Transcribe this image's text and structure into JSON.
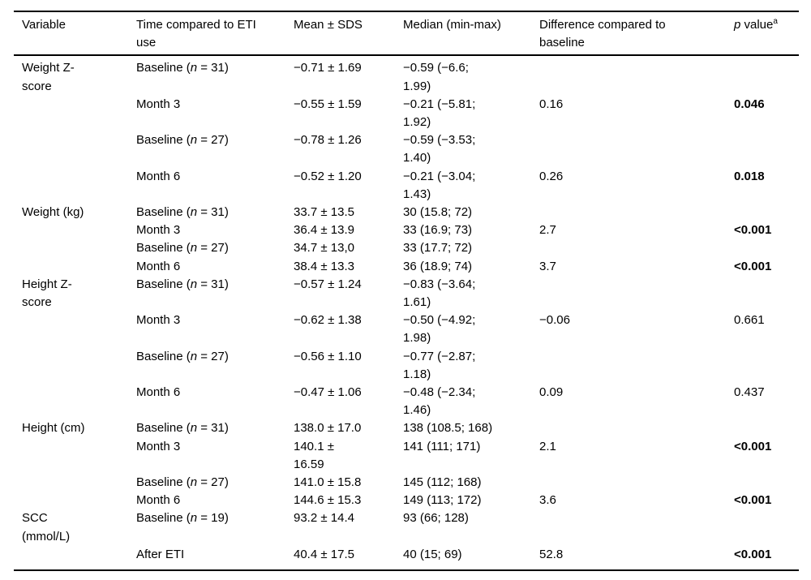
{
  "colors": {
    "background": "#ffffff",
    "text": "#000000",
    "rule": "#000000"
  },
  "table": {
    "headers": [
      {
        "key": "variable",
        "lines": [
          "Variable"
        ]
      },
      {
        "key": "time",
        "lines": [
          "Time compared to ETI",
          "use"
        ]
      },
      {
        "key": "mean",
        "lines": [
          "Mean ± SDS"
        ]
      },
      {
        "key": "median",
        "lines": [
          "Median (min-max)"
        ]
      },
      {
        "key": "difference",
        "lines": [
          "Difference compared to",
          "baseline"
        ]
      },
      {
        "key": "pvalue",
        "lines": [
          [
            {
              "t": "p",
              "i": true
            },
            {
              "t": " value"
            },
            {
              "t": "a",
              "sup": true
            }
          ]
        ]
      }
    ],
    "sections": [
      {
        "variable": [
          "Weight Z-",
          "score"
        ],
        "rows": [
          {
            "time": [
              [
                "Baseline (",
                {
                  "t": "n",
                  "i": true
                },
                " = 31)"
              ]
            ],
            "mean": [
              "−0.71 ± 1.69"
            ],
            "median": [
              "−0.59 (−6.6;",
              "1.99)"
            ],
            "difference": [],
            "pvalue": []
          },
          {
            "time": [
              "Month 3"
            ],
            "mean": [
              "−0.55 ± 1.59"
            ],
            "median": [
              "−0.21 (−5.81;",
              "1.92)"
            ],
            "difference": [
              "0.16"
            ],
            "pvalue": [
              [
                {
                  "t": "0.046",
                  "b": true
                }
              ]
            ]
          },
          {
            "time": [
              [
                "Baseline (",
                {
                  "t": "n",
                  "i": true
                },
                " = 27)"
              ]
            ],
            "mean": [
              "−0.78 ± 1.26"
            ],
            "median": [
              "−0.59 (−3.53;",
              "1.40)"
            ],
            "difference": [],
            "pvalue": []
          },
          {
            "time": [
              "Month 6"
            ],
            "mean": [
              "−0.52 ± 1.20"
            ],
            "median": [
              "−0.21 (−3.04;",
              "1.43)"
            ],
            "difference": [
              "0.26"
            ],
            "pvalue": [
              [
                {
                  "t": "0.018",
                  "b": true
                }
              ]
            ]
          }
        ]
      },
      {
        "variable": [
          "Weight (kg)"
        ],
        "rows": [
          {
            "time": [
              [
                "Baseline (",
                {
                  "t": "n",
                  "i": true
                },
                " = 31)"
              ]
            ],
            "mean": [
              "33.7 ± 13.5"
            ],
            "median": [
              "30 (15.8; 72)"
            ],
            "difference": [],
            "pvalue": []
          },
          {
            "time": [
              "Month 3"
            ],
            "mean": [
              "36.4 ± 13.9"
            ],
            "median": [
              "33 (16.9; 73)"
            ],
            "difference": [
              "2.7"
            ],
            "pvalue": [
              [
                {
                  "t": "<0.001",
                  "b": true
                }
              ]
            ]
          },
          {
            "time": [
              [
                "Baseline (",
                {
                  "t": "n",
                  "i": true
                },
                " = 27)"
              ]
            ],
            "mean": [
              "34.7 ± 13,0"
            ],
            "median": [
              "33 (17.7; 72)"
            ],
            "difference": [],
            "pvalue": []
          },
          {
            "time": [
              "Month 6"
            ],
            "mean": [
              "38.4 ± 13.3"
            ],
            "median": [
              "36 (18.9; 74)"
            ],
            "difference": [
              "3.7"
            ],
            "pvalue": [
              [
                {
                  "t": "<0.001",
                  "b": true
                }
              ]
            ]
          }
        ]
      },
      {
        "variable": [
          "Height Z-",
          "score"
        ],
        "rows": [
          {
            "time": [
              [
                "Baseline (",
                {
                  "t": "n",
                  "i": true
                },
                " = 31)"
              ]
            ],
            "mean": [
              "−0.57 ± 1.24"
            ],
            "median": [
              "−0.83 (−3.64;",
              "1.61)"
            ],
            "difference": [],
            "pvalue": []
          },
          {
            "time": [
              "Month 3"
            ],
            "mean": [
              "−0.62 ± 1.38"
            ],
            "median": [
              "−0.50 (−4.92;",
              "1.98)"
            ],
            "difference": [
              "−0.06"
            ],
            "pvalue": [
              [
                "0.661"
              ]
            ]
          },
          {
            "time": [
              [
                "Baseline (",
                {
                  "t": "n",
                  "i": true
                },
                " = 27)"
              ]
            ],
            "mean": [
              "−0.56 ± 1.10"
            ],
            "median": [
              "−0.77 (−2.87;",
              "1.18)"
            ],
            "difference": [],
            "pvalue": []
          },
          {
            "time": [
              "Month 6"
            ],
            "mean": [
              "−0.47 ± 1.06"
            ],
            "median": [
              "−0.48 (−2.34;",
              "1.46)"
            ],
            "difference": [
              "0.09"
            ],
            "pvalue": [
              [
                "0.437"
              ]
            ]
          }
        ]
      },
      {
        "variable": [
          "Height (cm)"
        ],
        "rows": [
          {
            "time": [
              [
                "Baseline (",
                {
                  "t": "n",
                  "i": true
                },
                " = 31)"
              ]
            ],
            "mean": [
              "138.0 ± 17.0"
            ],
            "median": [
              "138 (108.5; 168)"
            ],
            "difference": [],
            "pvalue": []
          },
          {
            "time": [
              "Month 3"
            ],
            "mean": [
              "140.1 ±",
              "16.59"
            ],
            "median": [
              "141 (111; 171)"
            ],
            "difference": [
              "2.1"
            ],
            "pvalue": [
              [
                {
                  "t": "<0.001",
                  "b": true
                }
              ]
            ]
          },
          {
            "time": [
              [
                "Baseline (",
                {
                  "t": "n",
                  "i": true
                },
                " = 27)"
              ]
            ],
            "mean": [
              "141.0 ± 15.8"
            ],
            "median": [
              "145 (112; 168)"
            ],
            "difference": [],
            "pvalue": []
          },
          {
            "time": [
              "Month 6"
            ],
            "mean": [
              "144.6 ± 15.3"
            ],
            "median": [
              "149 (113; 172)"
            ],
            "difference": [
              "3.6"
            ],
            "pvalue": [
              [
                {
                  "t": "<0.001",
                  "b": true
                }
              ]
            ]
          }
        ]
      },
      {
        "variable": [
          "SCC",
          "(mmol/L)"
        ],
        "rows": [
          {
            "time": [
              [
                "Baseline (",
                {
                  "t": "n",
                  "i": true
                },
                " = 19)"
              ]
            ],
            "mean": [
              "93.2 ± 14.4"
            ],
            "median": [
              "93 (66; 128)"
            ],
            "difference": [],
            "pvalue": []
          },
          {
            "time": [
              "After ETI"
            ],
            "mean": [
              "40.4 ± 17.5"
            ],
            "median": [
              "40 (15; 69)"
            ],
            "difference": [
              "52.8"
            ],
            "pvalue": [
              [
                {
                  "t": "<0.001",
                  "b": true
                }
              ]
            ]
          }
        ]
      }
    ]
  }
}
